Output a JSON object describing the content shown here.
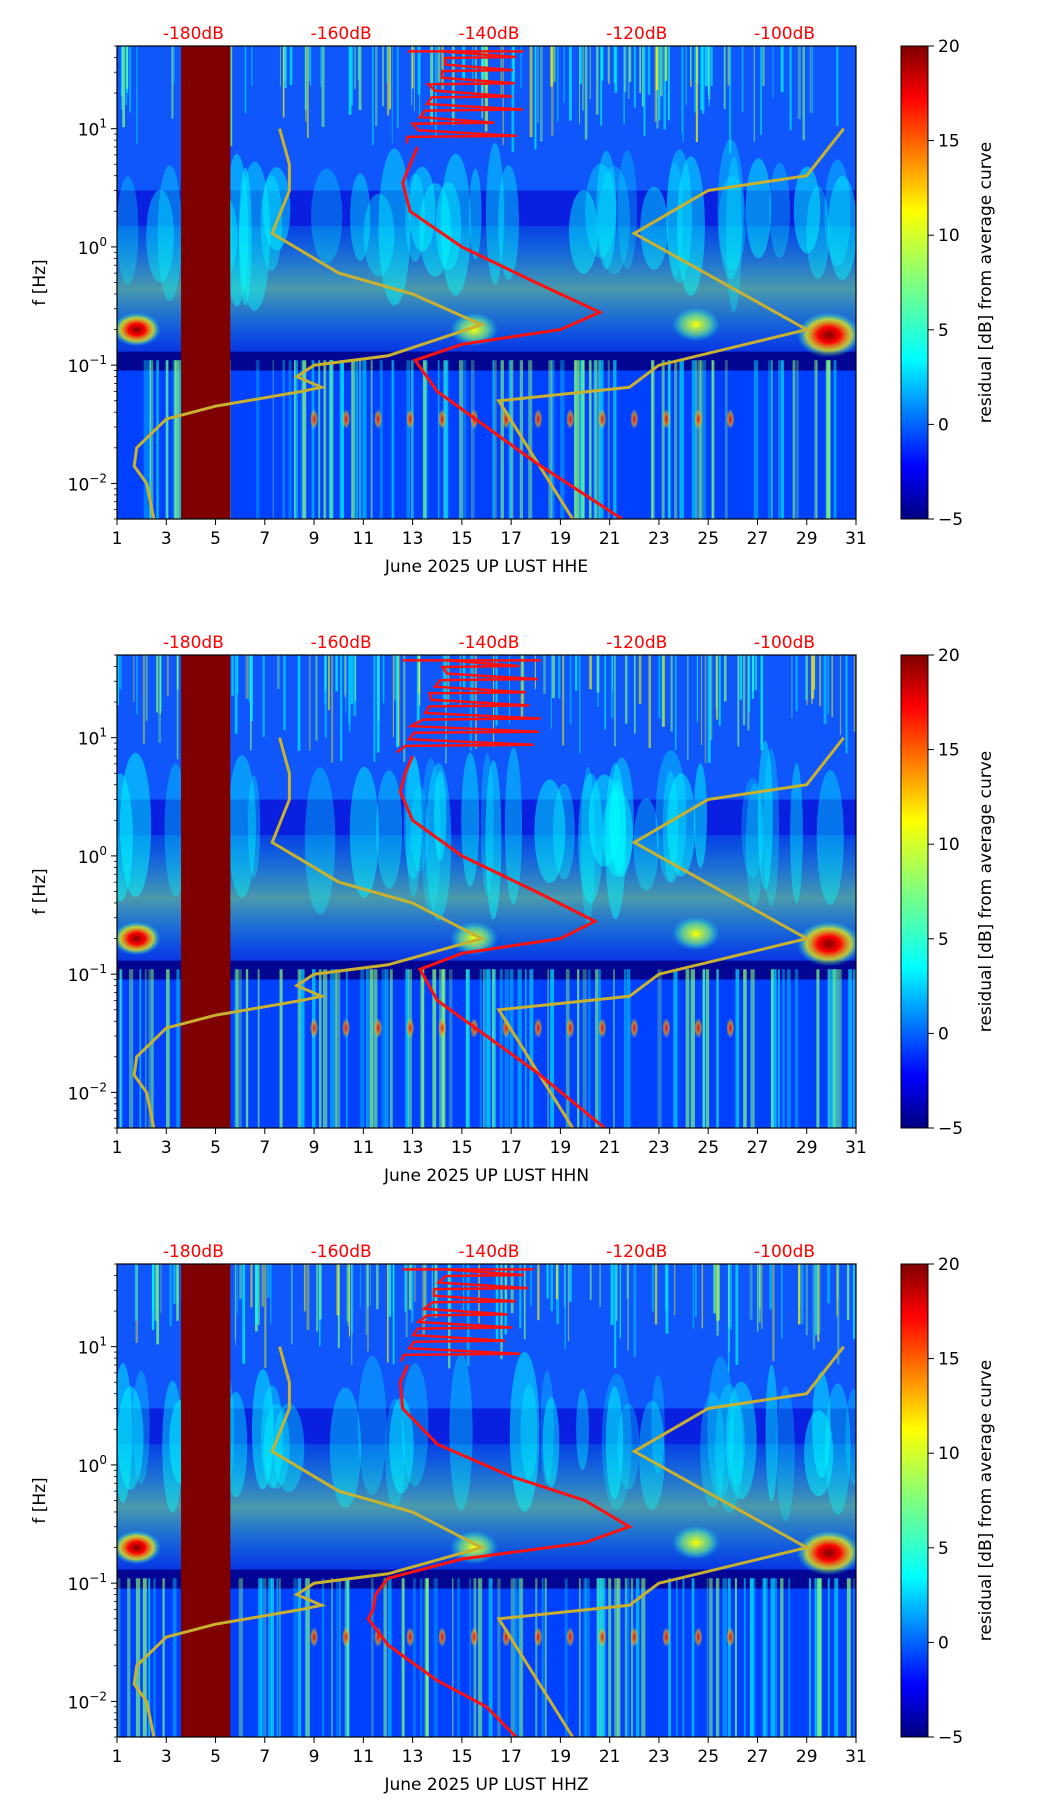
{
  "colors": {
    "red_curve": "#ff1010",
    "olive_curve": "#c8b030",
    "gap_fill": "#7f0000",
    "db_label": "#ff0000"
  },
  "colormap": [
    "#00007f",
    "#0000ff",
    "#007fff",
    "#00ffff",
    "#7fff7f",
    "#ffff00",
    "#ff7f00",
    "#ff0000",
    "#7f0000"
  ],
  "chart_data": [
    {
      "type": "heatmap",
      "title": "",
      "xlabel": "June 2025 UP LUST  HHE",
      "ylabel": "f [Hz]",
      "xlim": [
        1,
        31
      ],
      "ylim": [
        0.005,
        50
      ],
      "yscale": "log",
      "x_ticks": [
        1,
        3,
        5,
        7,
        9,
        11,
        13,
        15,
        17,
        19,
        21,
        23,
        25,
        27,
        29,
        31
      ],
      "y_ticks": [
        {
          "value": 0.01,
          "base": "10",
          "exp": "−2"
        },
        {
          "value": 0.1,
          "base": "10",
          "exp": "−1"
        },
        {
          "value": 1,
          "base": "10",
          "exp": "0"
        },
        {
          "value": 10,
          "base": "10",
          "exp": "1"
        }
      ],
      "top_labels": [
        {
          "x": 4.1,
          "text": "-180dB"
        },
        {
          "x": 10.1,
          "text": "-160dB"
        },
        {
          "x": 16.1,
          "text": "-140dB"
        },
        {
          "x": 22.1,
          "text": "-120dB"
        },
        {
          "x": 28.1,
          "text": "-100dB"
        }
      ],
      "colorbar": {
        "label": "residual [dB] from average curve",
        "min": -5,
        "max": 20,
        "ticks": [
          -5,
          0,
          5,
          10,
          15,
          20
        ]
      },
      "data_gap": {
        "x_start": 3.6,
        "x_end": 5.6,
        "value": 20
      },
      "hotspots": [
        {
          "x": 29.9,
          "f": 0.18,
          "value": 20
        },
        {
          "x": 15.5,
          "f": 0.2,
          "value": 12
        },
        {
          "x": 24.5,
          "f": 0.22,
          "value": 10
        },
        {
          "x": 1.8,
          "f": 0.2,
          "value": 15
        }
      ],
      "red_curve": [
        [
          13.2,
          7
        ],
        [
          12.9,
          5
        ],
        [
          12.6,
          3.5
        ],
        [
          12.9,
          2
        ],
        [
          15,
          1
        ],
        [
          18,
          0.5
        ],
        [
          20.6,
          0.28
        ],
        [
          19,
          0.2
        ],
        [
          15,
          0.15
        ],
        [
          13.1,
          0.11
        ],
        [
          14,
          0.06
        ],
        [
          16,
          0.03
        ],
        [
          18,
          0.015
        ],
        [
          21.5,
          0.005
        ]
      ],
      "red_spikes": {
        "base_x": 12.8,
        "base_f": 7.5,
        "top_f": 45,
        "spike_x": 17.5
      },
      "olive_curve": [
        [
          2.5,
          0.005
        ],
        [
          2.2,
          0.01
        ],
        [
          1.7,
          0.014
        ],
        [
          1.8,
          0.02
        ],
        [
          3,
          0.035
        ],
        [
          5,
          0.045
        ],
        [
          8.5,
          0.06
        ],
        [
          9.3,
          0.065
        ],
        [
          8.3,
          0.08
        ],
        [
          9,
          0.1
        ],
        [
          12,
          0.12
        ],
        [
          15.8,
          0.22
        ],
        [
          13,
          0.4
        ],
        [
          10,
          0.6
        ],
        [
          7.3,
          1.3
        ],
        [
          8,
          3
        ],
        [
          8,
          5
        ],
        [
          7.6,
          10
        ]
      ],
      "olive_curve2": [
        [
          19.5,
          0.005
        ],
        [
          16.5,
          0.05
        ],
        [
          21.8,
          0.065
        ],
        [
          23,
          0.1
        ],
        [
          29,
          0.2
        ],
        [
          22,
          1.3
        ],
        [
          25,
          3
        ],
        [
          29,
          4
        ],
        [
          30.5,
          10
        ]
      ]
    },
    {
      "type": "heatmap",
      "title": "",
      "xlabel": "June 2025 UP LUST  HHN",
      "ylabel": "f [Hz]",
      "xlim": [
        1,
        31
      ],
      "ylim": [
        0.005,
        50
      ],
      "yscale": "log",
      "x_ticks": [
        1,
        3,
        5,
        7,
        9,
        11,
        13,
        15,
        17,
        19,
        21,
        23,
        25,
        27,
        29,
        31
      ],
      "y_ticks": [
        {
          "value": 0.01,
          "base": "10",
          "exp": "−2"
        },
        {
          "value": 0.1,
          "base": "10",
          "exp": "−1"
        },
        {
          "value": 1,
          "base": "10",
          "exp": "0"
        },
        {
          "value": 10,
          "base": "10",
          "exp": "1"
        }
      ],
      "top_labels": [
        {
          "x": 4.1,
          "text": "-180dB"
        },
        {
          "x": 10.1,
          "text": "-160dB"
        },
        {
          "x": 16.1,
          "text": "-140dB"
        },
        {
          "x": 22.1,
          "text": "-120dB"
        },
        {
          "x": 28.1,
          "text": "-100dB"
        }
      ],
      "colorbar": {
        "label": "residual [dB] from average curve",
        "min": -5,
        "max": 20,
        "ticks": [
          -5,
          0,
          5,
          10,
          15,
          20
        ]
      },
      "data_gap": {
        "x_start": 3.6,
        "x_end": 5.6,
        "value": 20
      },
      "hotspots": [
        {
          "x": 29.9,
          "f": 0.18,
          "value": 20
        },
        {
          "x": 15.5,
          "f": 0.2,
          "value": 12
        },
        {
          "x": 24.5,
          "f": 0.22,
          "value": 10
        },
        {
          "x": 1.8,
          "f": 0.2,
          "value": 15
        }
      ],
      "red_curve": [
        [
          13,
          7
        ],
        [
          12.7,
          5
        ],
        [
          12.5,
          3.5
        ],
        [
          13,
          2
        ],
        [
          15,
          1
        ],
        [
          18,
          0.5
        ],
        [
          20.4,
          0.28
        ],
        [
          19,
          0.2
        ],
        [
          15,
          0.15
        ],
        [
          13.3,
          0.11
        ],
        [
          14,
          0.06
        ],
        [
          16,
          0.03
        ],
        [
          18,
          0.015
        ],
        [
          20.8,
          0.005
        ]
      ],
      "red_spikes": {
        "base_x": 12.6,
        "base_f": 7.5,
        "top_f": 45,
        "spike_x": 18.2
      },
      "olive_curve": [
        [
          2.5,
          0.005
        ],
        [
          2.2,
          0.01
        ],
        [
          1.7,
          0.014
        ],
        [
          1.8,
          0.02
        ],
        [
          3,
          0.035
        ],
        [
          5,
          0.045
        ],
        [
          8.5,
          0.06
        ],
        [
          9.3,
          0.065
        ],
        [
          8.3,
          0.08
        ],
        [
          9,
          0.1
        ],
        [
          12,
          0.12
        ],
        [
          15.8,
          0.2
        ],
        [
          13,
          0.4
        ],
        [
          10,
          0.6
        ],
        [
          7.3,
          1.3
        ],
        [
          8,
          3
        ],
        [
          8,
          5
        ],
        [
          7.6,
          10
        ]
      ],
      "olive_curve2": [
        [
          19.5,
          0.005
        ],
        [
          16.5,
          0.05
        ],
        [
          21.8,
          0.065
        ],
        [
          23,
          0.1
        ],
        [
          29,
          0.2
        ],
        [
          22,
          1.3
        ],
        [
          25,
          3
        ],
        [
          29,
          4
        ],
        [
          30.5,
          10
        ]
      ]
    },
    {
      "type": "heatmap",
      "title": "",
      "xlabel": "June 2025 UP LUST  HHZ",
      "ylabel": "f [Hz]",
      "xlim": [
        1,
        31
      ],
      "ylim": [
        0.005,
        50
      ],
      "yscale": "log",
      "x_ticks": [
        1,
        3,
        5,
        7,
        9,
        11,
        13,
        15,
        17,
        19,
        21,
        23,
        25,
        27,
        29,
        31
      ],
      "y_ticks": [
        {
          "value": 0.01,
          "base": "10",
          "exp": "−2"
        },
        {
          "value": 0.1,
          "base": "10",
          "exp": "−1"
        },
        {
          "value": 1,
          "base": "10",
          "exp": "0"
        },
        {
          "value": 10,
          "base": "10",
          "exp": "1"
        }
      ],
      "top_labels": [
        {
          "x": 4.1,
          "text": "-180dB"
        },
        {
          "x": 10.1,
          "text": "-160dB"
        },
        {
          "x": 16.1,
          "text": "-140dB"
        },
        {
          "x": 22.1,
          "text": "-120dB"
        },
        {
          "x": 28.1,
          "text": "-100dB"
        }
      ],
      "colorbar": {
        "label": "residual [dB] from average curve",
        "min": -5,
        "max": 20,
        "ticks": [
          -5,
          0,
          5,
          10,
          15,
          20
        ]
      },
      "data_gap": {
        "x_start": 3.6,
        "x_end": 5.6,
        "value": 20
      },
      "hotspots": [
        {
          "x": 29.9,
          "f": 0.18,
          "value": 20
        },
        {
          "x": 15.5,
          "f": 0.2,
          "value": 12
        },
        {
          "x": 24.5,
          "f": 0.22,
          "value": 10
        },
        {
          "x": 1.8,
          "f": 0.2,
          "value": 15
        }
      ],
      "red_curve": [
        [
          12.8,
          7
        ],
        [
          12.5,
          5
        ],
        [
          12.6,
          3
        ],
        [
          14,
          1.5
        ],
        [
          17,
          0.8
        ],
        [
          20,
          0.5
        ],
        [
          21.8,
          0.3
        ],
        [
          20,
          0.22
        ],
        [
          15,
          0.16
        ],
        [
          12,
          0.11
        ],
        [
          11.5,
          0.08
        ],
        [
          11.4,
          0.06
        ],
        [
          11.2,
          0.05
        ],
        [
          12,
          0.03
        ],
        [
          14,
          0.015
        ],
        [
          16,
          0.009
        ],
        [
          17.2,
          0.005
        ]
      ],
      "red_spikes": {
        "base_x": 12.6,
        "base_f": 7.5,
        "top_f": 45,
        "spike_x": 17.9
      },
      "olive_curve": [
        [
          2.5,
          0.005
        ],
        [
          2.2,
          0.01
        ],
        [
          1.7,
          0.014
        ],
        [
          1.8,
          0.02
        ],
        [
          3,
          0.035
        ],
        [
          5,
          0.045
        ],
        [
          8.5,
          0.06
        ],
        [
          9.3,
          0.065
        ],
        [
          8.3,
          0.08
        ],
        [
          9,
          0.1
        ],
        [
          12,
          0.12
        ],
        [
          15.8,
          0.2
        ],
        [
          13,
          0.4
        ],
        [
          10,
          0.6
        ],
        [
          7.3,
          1.3
        ],
        [
          8,
          3
        ],
        [
          8,
          5
        ],
        [
          7.6,
          10
        ]
      ],
      "olive_curve2": [
        [
          19.5,
          0.005
        ],
        [
          16.5,
          0.05
        ],
        [
          21.8,
          0.065
        ],
        [
          23,
          0.1
        ],
        [
          29,
          0.2
        ],
        [
          22,
          1.3
        ],
        [
          25,
          3
        ],
        [
          29,
          4
        ],
        [
          30.5,
          10
        ]
      ]
    }
  ]
}
